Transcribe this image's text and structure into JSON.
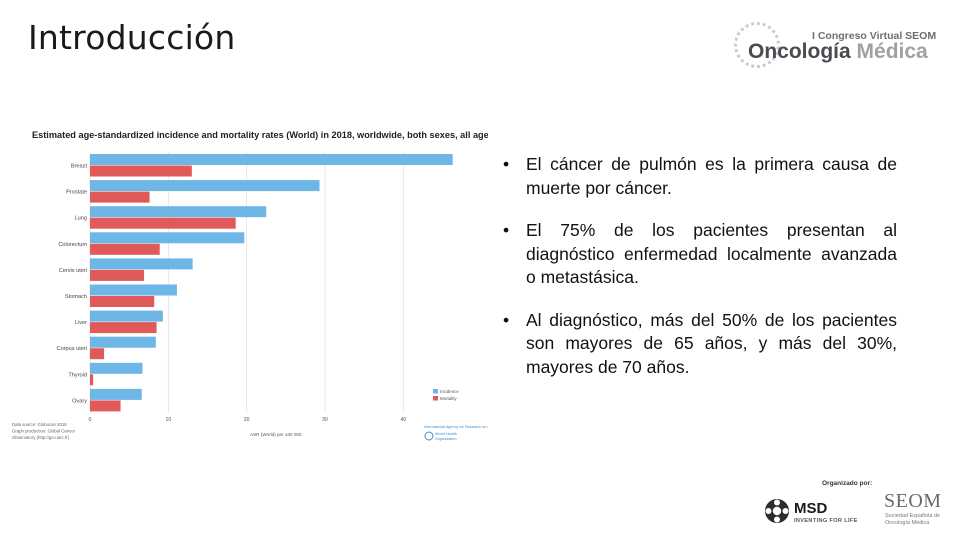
{
  "slide": {
    "title": "Introducción"
  },
  "congress_logo": {
    "top_line": "I Congreso Virtual SEOM",
    "main_prefix": "Oncología",
    "main_suffix": "Médica"
  },
  "bullets": [
    "El cáncer de pulmón es la primera causa de muerte por cáncer.",
    "El 75% de los pacientes presentan al diagnóstico enfermedad localmente avanzada o metastásica.",
    "Al diagnóstico, más del 50% de los pacientes son mayores de 65 años, y más del 30%, mayores de 70 años."
  ],
  "bullet_symbol": "•",
  "footer": {
    "organized_by": "Organizado por:",
    "msd_name": "MSD",
    "msd_tagline": "INVENTING FOR LIFE",
    "seom_name": "SEOM",
    "seom_sub": "Sociedad Española de Oncología Médica"
  },
  "chart_data": {
    "type": "bar",
    "title": "Estimated age-standardized incidence and mortality rates (World) in 2018, worldwide, both sexes, all ages",
    "xlabel": "ASR (World) per 100 000",
    "categories": [
      "Breast",
      "Prostate",
      "Lung",
      "Colorectum",
      "Cervix uteri",
      "Stomach",
      "Liver",
      "Corpus uteri",
      "Thyroid",
      "Ovary"
    ],
    "series": [
      {
        "name": "Incidence",
        "color": "#6db6e6",
        "values": [
          46.3,
          29.3,
          22.5,
          19.7,
          13.1,
          11.1,
          9.3,
          8.4,
          6.7,
          6.6
        ]
      },
      {
        "name": "Mortality",
        "color": "#e05a5a",
        "values": [
          13.0,
          7.6,
          18.6,
          8.9,
          6.9,
          8.2,
          8.5,
          1.8,
          0.4,
          3.9
        ]
      }
    ],
    "xlim": [
      0,
      48
    ],
    "xticks": [
      0,
      10,
      20,
      30,
      40
    ],
    "grid": true,
    "legend_position": "bottom-right",
    "source_lines": [
      "Data source: Globocan 2018",
      "Graph production: Global Cancer",
      "Observatory (http://gco.iarc.fr)"
    ],
    "credit_lines": [
      "International Agency for Research on Cancer",
      "World Health",
      "Organization"
    ]
  }
}
